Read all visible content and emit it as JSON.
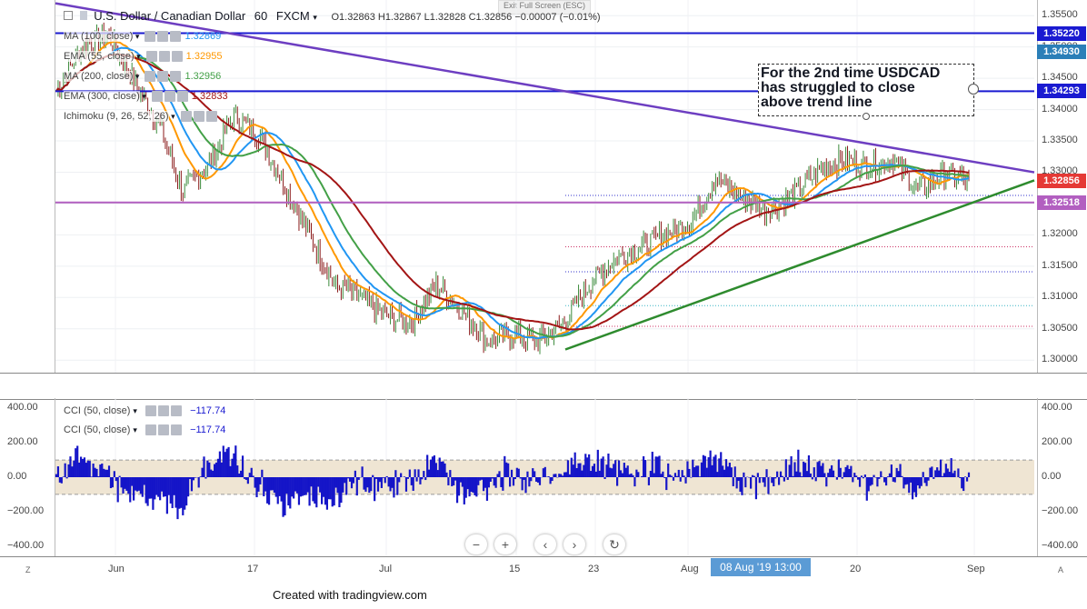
{
  "header": {
    "exit_fullscreen": "Exit Full Screen (ESC)",
    "symbol": "U.S. Dollar / Canadian Dollar",
    "interval": "60",
    "source": "FXCM",
    "ohlc": "O1.32863  H1.32867  L1.32828  C1.32856  −0.00007 (−0.01%)"
  },
  "indicators": [
    {
      "name": "MA (100, close)",
      "value": "1.32869",
      "color": "#2196f3"
    },
    {
      "name": "EMA (55, close)",
      "value": "1.32955",
      "color": "#ff9800"
    },
    {
      "name": "MA (200, close)",
      "value": "1.32956",
      "color": "#43a047"
    },
    {
      "name": "EMA (300, close)",
      "value": "1.32833",
      "color": "#a31515"
    },
    {
      "name": "Ichimoku (9, 26, 52, 26)",
      "value": "",
      "color": "#444444"
    }
  ],
  "price_axis": [
    "1.35500",
    "1.35000",
    "1.34500",
    "1.34000",
    "1.33500",
    "1.33000",
    "1.32500",
    "1.32000",
    "1.31500",
    "1.31000",
    "1.30500",
    "1.30000"
  ],
  "price_tags": [
    {
      "label": "1.35220",
      "bg": "#1a1ad1"
    },
    {
      "label": "1.34930",
      "bg": "#2b7fb8"
    },
    {
      "label": "1.34293",
      "bg": "#1a1ad1"
    },
    {
      "label": "1.32856",
      "bg": "#e53935"
    },
    {
      "label": "1.32518",
      "bg": "#b25fc0"
    }
  ],
  "annotation": {
    "line1": "For the 2nd time USDCAD",
    "line2": "has struggled to close",
    "line3": "above trend line"
  },
  "cci": {
    "legend": [
      {
        "name": "CCI (50, close)",
        "value": "−117.74"
      },
      {
        "name": "CCI (50, close)",
        "value": "−117.74"
      }
    ],
    "axis": [
      "400.00",
      "200.00",
      "0.00",
      "−200.00",
      "−400.00"
    ]
  },
  "time_axis": [
    "Jun",
    "17",
    "Jul",
    "15",
    "23",
    "Aug",
    "20",
    "Sep"
  ],
  "time_cursor": "08 Aug '19   13:00",
  "corner": {
    "left": "Z",
    "right": "A"
  },
  "footer": "Created with tradingview.com",
  "chart_data": {
    "type": "line",
    "title": "U.S. Dollar / Canadian Dollar 60 FXCM",
    "ylim": [
      1.298,
      1.3575
    ],
    "horizontal_levels": [
      1.3522,
      1.34293,
      1.32518
    ],
    "trendlines": [
      {
        "name": "resistance",
        "from": [
          0.0,
          1.35697
        ],
        "to": [
          1.0,
          1.32999
        ],
        "color": "#6d3ec1"
      },
      {
        "name": "support",
        "from": [
          0.5,
          1.3017
        ],
        "to": [
          1.0,
          1.3287
        ],
        "color": "#2e8b2e"
      }
    ],
    "price_approx": [
      1.343,
      1.35,
      1.352,
      1.345,
      1.338,
      1.327,
      1.331,
      1.339,
      1.336,
      1.328,
      1.32,
      1.312,
      1.31,
      1.307,
      1.306,
      1.312,
      1.308,
      1.303,
      1.304,
      1.303,
      1.306,
      1.312,
      1.316,
      1.318,
      1.32,
      1.322,
      1.329,
      1.326,
      1.324,
      1.326,
      1.33,
      1.332,
      1.331,
      1.332,
      1.327,
      1.33,
      1.3286
    ],
    "last_price": 1.32856
  }
}
